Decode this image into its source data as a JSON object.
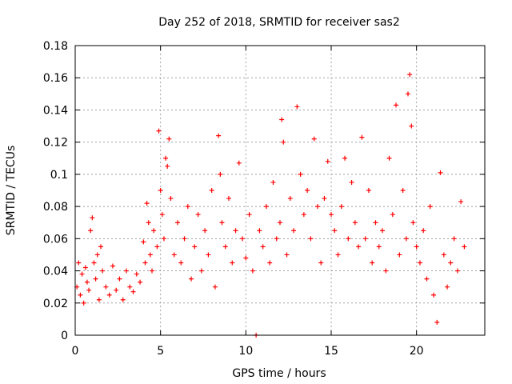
{
  "chart_data": {
    "type": "scatter",
    "title": "Day 252 of 2018, SRMTID for receiver sas2",
    "xlabel": "GPS time / hours",
    "ylabel": "SRMTID / TECUs",
    "xlim": [
      0,
      24
    ],
    "ylim": [
      0,
      0.18
    ],
    "xticks": [
      0,
      5,
      10,
      15,
      20
    ],
    "xtick_labels": [
      "0",
      "5",
      "10",
      "15",
      "20"
    ],
    "yticks": [
      0,
      0.02,
      0.04,
      0.06,
      0.08,
      0.1,
      0.12,
      0.14,
      0.16,
      0.18
    ],
    "ytick_labels": [
      "0",
      "0.02",
      "0.04",
      "0.06",
      "0.08",
      "0.1",
      "0.12",
      "0.14",
      "0.16",
      "0.18"
    ],
    "grid": true,
    "marker": "+",
    "color": "#ff0000",
    "series": [
      {
        "name": "SRMTID",
        "points": [
          [
            0.1,
            0.03
          ],
          [
            0.2,
            0.045
          ],
          [
            0.3,
            0.025
          ],
          [
            0.4,
            0.038
          ],
          [
            0.5,
            0.02
          ],
          [
            0.6,
            0.042
          ],
          [
            0.7,
            0.033
          ],
          [
            0.8,
            0.028
          ],
          [
            0.9,
            0.065
          ],
          [
            1.0,
            0.073
          ],
          [
            1.1,
            0.045
          ],
          [
            1.2,
            0.035
          ],
          [
            1.3,
            0.05
          ],
          [
            1.4,
            0.022
          ],
          [
            1.5,
            0.055
          ],
          [
            1.6,
            0.04
          ],
          [
            1.8,
            0.03
          ],
          [
            2.0,
            0.025
          ],
          [
            2.2,
            0.043
          ],
          [
            2.4,
            0.028
          ],
          [
            2.6,
            0.035
          ],
          [
            2.8,
            0.022
          ],
          [
            3.0,
            0.04
          ],
          [
            3.2,
            0.03
          ],
          [
            3.4,
            0.027
          ],
          [
            3.6,
            0.038
          ],
          [
            3.8,
            0.033
          ],
          [
            4.0,
            0.058
          ],
          [
            4.1,
            0.045
          ],
          [
            4.2,
            0.082
          ],
          [
            4.3,
            0.07
          ],
          [
            4.4,
            0.05
          ],
          [
            4.5,
            0.04
          ],
          [
            4.6,
            0.065
          ],
          [
            4.8,
            0.055
          ],
          [
            4.9,
            0.127
          ],
          [
            5.0,
            0.09
          ],
          [
            5.1,
            0.075
          ],
          [
            5.2,
            0.06
          ],
          [
            5.3,
            0.11
          ],
          [
            5.4,
            0.105
          ],
          [
            5.5,
            0.122
          ],
          [
            5.6,
            0.085
          ],
          [
            5.8,
            0.05
          ],
          [
            6.0,
            0.07
          ],
          [
            6.2,
            0.045
          ],
          [
            6.4,
            0.06
          ],
          [
            6.6,
            0.08
          ],
          [
            6.8,
            0.035
          ],
          [
            7.0,
            0.055
          ],
          [
            7.2,
            0.075
          ],
          [
            7.4,
            0.04
          ],
          [
            7.6,
            0.065
          ],
          [
            7.8,
            0.05
          ],
          [
            8.0,
            0.09
          ],
          [
            8.2,
            0.03
          ],
          [
            8.4,
            0.124
          ],
          [
            8.5,
            0.1
          ],
          [
            8.6,
            0.07
          ],
          [
            8.8,
            0.055
          ],
          [
            9.0,
            0.085
          ],
          [
            9.2,
            0.045
          ],
          [
            9.4,
            0.065
          ],
          [
            9.6,
            0.107
          ],
          [
            9.8,
            0.06
          ],
          [
            10.0,
            0.048
          ],
          [
            10.2,
            0.075
          ],
          [
            10.4,
            0.04
          ],
          [
            10.6,
            0.0
          ],
          [
            10.8,
            0.065
          ],
          [
            11.0,
            0.055
          ],
          [
            11.2,
            0.08
          ],
          [
            11.4,
            0.045
          ],
          [
            11.6,
            0.095
          ],
          [
            11.8,
            0.06
          ],
          [
            12.0,
            0.07
          ],
          [
            12.1,
            0.134
          ],
          [
            12.2,
            0.12
          ],
          [
            12.4,
            0.05
          ],
          [
            12.6,
            0.085
          ],
          [
            12.8,
            0.065
          ],
          [
            13.0,
            0.142
          ],
          [
            13.2,
            0.1
          ],
          [
            13.4,
            0.075
          ],
          [
            13.6,
            0.09
          ],
          [
            13.8,
            0.06
          ],
          [
            14.0,
            0.122
          ],
          [
            14.2,
            0.08
          ],
          [
            14.4,
            0.045
          ],
          [
            14.6,
            0.085
          ],
          [
            14.8,
            0.108
          ],
          [
            15.0,
            0.075
          ],
          [
            15.2,
            0.065
          ],
          [
            15.4,
            0.05
          ],
          [
            15.6,
            0.08
          ],
          [
            15.8,
            0.11
          ],
          [
            16.0,
            0.06
          ],
          [
            16.2,
            0.095
          ],
          [
            16.4,
            0.07
          ],
          [
            16.6,
            0.055
          ],
          [
            16.8,
            0.123
          ],
          [
            17.0,
            0.06
          ],
          [
            17.2,
            0.09
          ],
          [
            17.4,
            0.045
          ],
          [
            17.6,
            0.07
          ],
          [
            17.8,
            0.055
          ],
          [
            18.0,
            0.065
          ],
          [
            18.2,
            0.04
          ],
          [
            18.4,
            0.11
          ],
          [
            18.6,
            0.075
          ],
          [
            18.8,
            0.143
          ],
          [
            19.0,
            0.05
          ],
          [
            19.2,
            0.09
          ],
          [
            19.4,
            0.06
          ],
          [
            19.5,
            0.15
          ],
          [
            19.6,
            0.162
          ],
          [
            19.7,
            0.13
          ],
          [
            19.8,
            0.07
          ],
          [
            20.0,
            0.055
          ],
          [
            20.2,
            0.045
          ],
          [
            20.4,
            0.065
          ],
          [
            20.6,
            0.035
          ],
          [
            20.8,
            0.08
          ],
          [
            21.0,
            0.025
          ],
          [
            21.2,
            0.008
          ],
          [
            21.4,
            0.101
          ],
          [
            21.6,
            0.05
          ],
          [
            21.8,
            0.03
          ],
          [
            22.0,
            0.045
          ],
          [
            22.2,
            0.06
          ],
          [
            22.4,
            0.04
          ],
          [
            22.6,
            0.083
          ],
          [
            22.8,
            0.055
          ]
        ]
      }
    ]
  }
}
